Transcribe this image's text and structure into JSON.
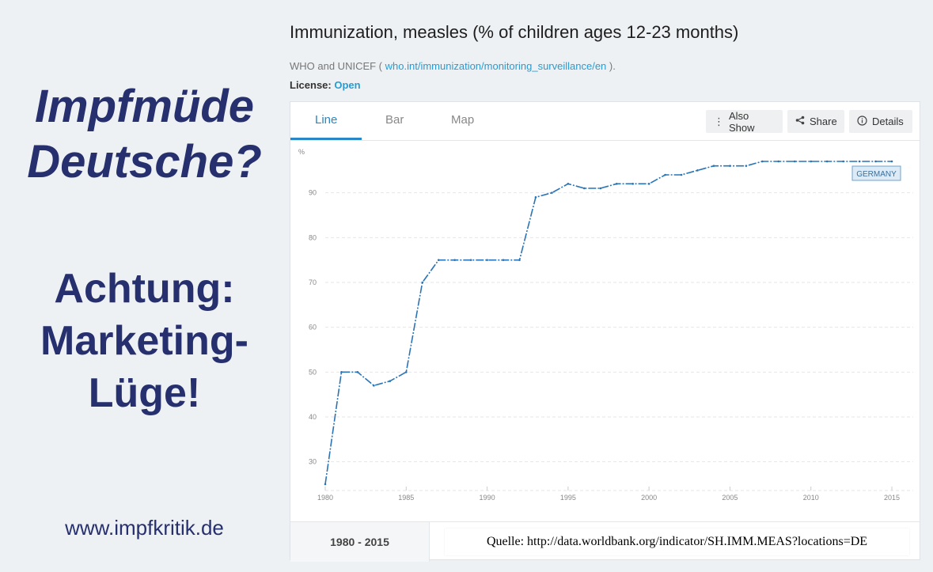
{
  "left": {
    "title1_line1": "Impfmüde",
    "title1_line2": "Deutsche?",
    "title2_line1": "Achtung:",
    "title2_line2": "Marketing-",
    "title2_line3": "Lüge!",
    "website": "www.impfkritik.de"
  },
  "header": {
    "title": "Immunization, measles (% of children ages 12-23 months)",
    "source_prefix": "WHO and UNICEF (",
    "source_link": "who.int/immunization/monitoring_surveillance/en",
    "source_suffix": ").",
    "license_label": "License:",
    "license_value": "Open"
  },
  "tabs": [
    "Line",
    "Bar",
    "Map"
  ],
  "toolbar": {
    "also_show": "Also Show",
    "share": "Share",
    "details": "Details"
  },
  "bottom": {
    "range": "1980 - 2015",
    "quelle": "Quelle: http://data.worldbank.org/indicator/SH.IMM.MEAS?locations=DE"
  },
  "colors": {
    "line": "#2a74b5",
    "accent": "#2a86c4",
    "title_blue": "#27306e"
  },
  "chart_data": {
    "type": "line",
    "ylabel": "%",
    "ylim": [
      25,
      100
    ],
    "xlim": [
      1980,
      2015
    ],
    "yticks": [
      30,
      40,
      50,
      60,
      70,
      80,
      90
    ],
    "xticks": [
      1980,
      1985,
      1990,
      1995,
      2000,
      2005,
      2010,
      2015
    ],
    "grid": true,
    "series": [
      {
        "name": "GERMANY",
        "x": [
          1980,
          1981,
          1982,
          1983,
          1984,
          1985,
          1986,
          1987,
          1988,
          1989,
          1990,
          1991,
          1992,
          1993,
          1994,
          1995,
          1996,
          1997,
          1998,
          1999,
          2000,
          2001,
          2002,
          2003,
          2004,
          2005,
          2006,
          2007,
          2008,
          2009,
          2010,
          2011,
          2012,
          2013,
          2014,
          2015
        ],
        "values": [
          25,
          50,
          50,
          47,
          48,
          50,
          70,
          75,
          75,
          75,
          75,
          75,
          75,
          89,
          90,
          92,
          91,
          91,
          92,
          92,
          92,
          94,
          94,
          95,
          96,
          96,
          96,
          97,
          97,
          97,
          97,
          97,
          97,
          97,
          97,
          97
        ]
      }
    ]
  }
}
